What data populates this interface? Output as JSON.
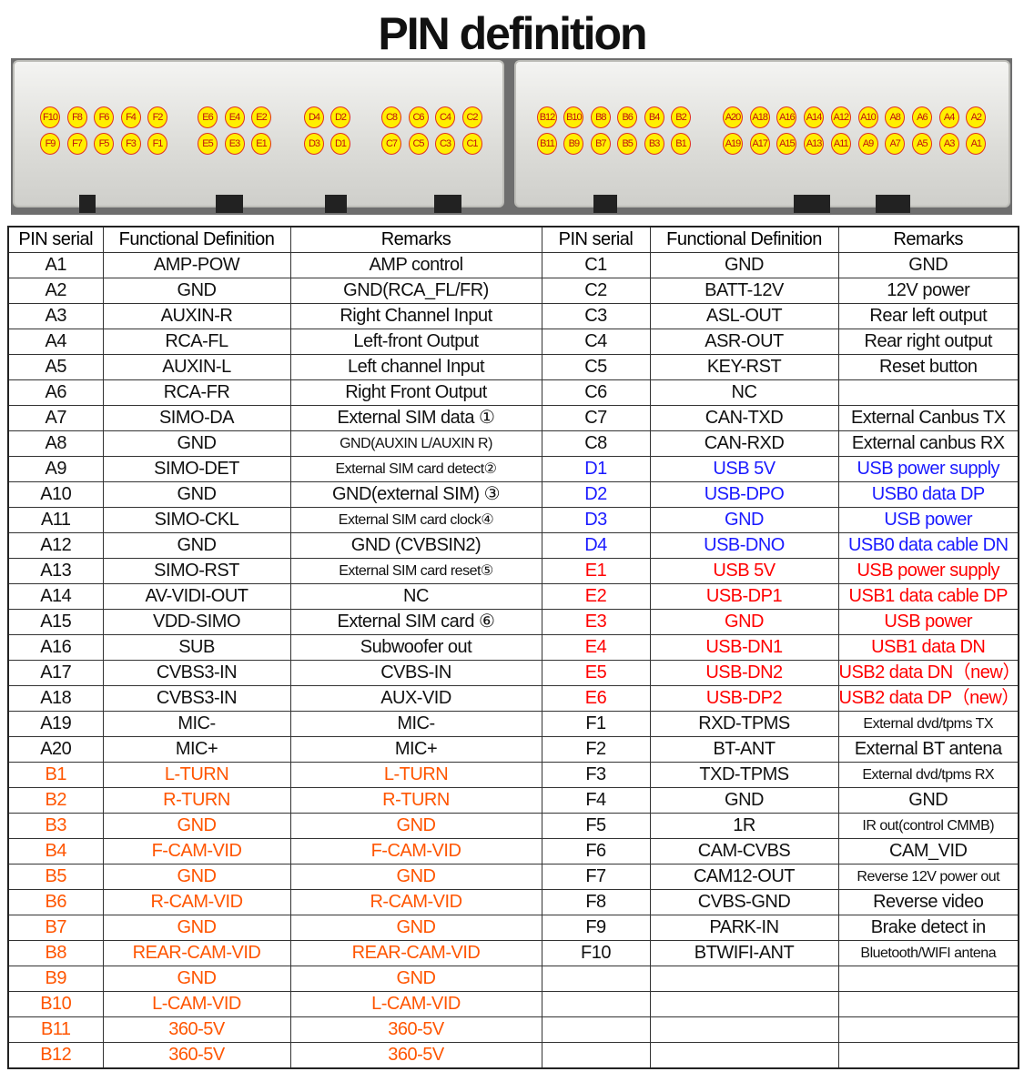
{
  "title": "PIN definition",
  "connector": {
    "groups": [
      {
        "name": "F",
        "top": [
          "F10",
          "F8",
          "F6",
          "F4",
          "F2"
        ],
        "bottom": [
          "F9",
          "F7",
          "F5",
          "F3",
          "F1"
        ]
      },
      {
        "name": "E",
        "top": [
          "E6",
          "E4",
          "E2"
        ],
        "bottom": [
          "E5",
          "E3",
          "E1"
        ]
      },
      {
        "name": "D",
        "top": [
          "D4",
          "D2"
        ],
        "bottom": [
          "D3",
          "D1"
        ]
      },
      {
        "name": "C",
        "top": [
          "C8",
          "C6",
          "C4",
          "C2"
        ],
        "bottom": [
          "C7",
          "C5",
          "C3",
          "C1"
        ]
      },
      {
        "name": "B",
        "top": [
          "B12",
          "B10",
          "B8",
          "B6",
          "B4",
          "B2"
        ],
        "bottom": [
          "B11",
          "B9",
          "B7",
          "B5",
          "B3",
          "B1"
        ]
      },
      {
        "name": "A",
        "top": [
          "A20",
          "A18",
          "A16",
          "A14",
          "A12",
          "A10",
          "A8",
          "A6",
          "A4",
          "A2"
        ],
        "bottom": [
          "A19",
          "A17",
          "A15",
          "A13",
          "A11",
          "A9",
          "A7",
          "A5",
          "A3",
          "A1"
        ]
      }
    ]
  },
  "colors": {
    "default": "#111111",
    "orange": "#ff5500",
    "blue": "#1a1aff",
    "red": "#ff0000"
  },
  "headers": [
    "PIN serial",
    "Functional Definition",
    "Remarks",
    "PIN serial",
    "Functional Definition",
    "Remarks"
  ],
  "left": [
    [
      "A1",
      "AMP-POW",
      "AMP control",
      "default"
    ],
    [
      "A2",
      "GND",
      "GND(RCA_FL/FR)",
      "default"
    ],
    [
      "A3",
      "AUXIN-R",
      "Right Channel Input",
      "default"
    ],
    [
      "A4",
      "RCA-FL",
      "Left-front Output",
      "default"
    ],
    [
      "A5",
      "AUXIN-L",
      "Left channel Input",
      "default"
    ],
    [
      "A6",
      "RCA-FR",
      "Right Front Output",
      "default"
    ],
    [
      "A7",
      "SIMO-DA",
      "External SIM data ①",
      "default"
    ],
    [
      "A8",
      "GND",
      "GND(AUXIN L/AUXIN R)",
      "default"
    ],
    [
      "A9",
      "SIMO-DET",
      "External SIM card detect②",
      "default"
    ],
    [
      "A10",
      "GND",
      "GND(external SIM) ③",
      "default"
    ],
    [
      "A11",
      "SIMO-CKL",
      "External SIM card clock④",
      "default"
    ],
    [
      "A12",
      "GND",
      "GND (CVBSIN2)",
      "default"
    ],
    [
      "A13",
      "SIMO-RST",
      "External SIM card reset⑤",
      "default"
    ],
    [
      "A14",
      "AV-VIDI-OUT",
      "NC",
      "default"
    ],
    [
      "A15",
      "VDD-SIMO",
      "External SIM card ⑥",
      "default"
    ],
    [
      "A16",
      "SUB",
      "Subwoofer out",
      "default"
    ],
    [
      "A17",
      "CVBS3-IN",
      "CVBS-IN",
      "default"
    ],
    [
      "A18",
      "CVBS3-IN",
      "AUX-VID",
      "default"
    ],
    [
      "A19",
      "MIC-",
      "MIC-",
      "default"
    ],
    [
      "A20",
      "MIC+",
      "MIC+",
      "default"
    ],
    [
      "B1",
      "L-TURN",
      "L-TURN",
      "orange"
    ],
    [
      "B2",
      "R-TURN",
      "R-TURN",
      "orange"
    ],
    [
      "B3",
      "GND",
      "GND",
      "orange"
    ],
    [
      "B4",
      "F-CAM-VID",
      "F-CAM-VID",
      "orange"
    ],
    [
      "B5",
      "GND",
      "GND",
      "orange"
    ],
    [
      "B6",
      "R-CAM-VID",
      "R-CAM-VID",
      "orange"
    ],
    [
      "B7",
      "GND",
      "GND",
      "orange"
    ],
    [
      "B8",
      "REAR-CAM-VID",
      "REAR-CAM-VID",
      "orange"
    ],
    [
      "B9",
      "GND",
      "GND",
      "orange"
    ],
    [
      "B10",
      "L-CAM-VID",
      "L-CAM-VID",
      "orange"
    ],
    [
      "B11",
      "360-5V",
      "360-5V",
      "orange"
    ],
    [
      "B12",
      "360-5V",
      "360-5V",
      "orange"
    ]
  ],
  "right": [
    [
      "C1",
      "GND",
      "GND",
      "default"
    ],
    [
      "C2",
      "BATT-12V",
      "12V power",
      "default"
    ],
    [
      "C3",
      "ASL-OUT",
      "Rear left output",
      "default"
    ],
    [
      "C4",
      "ASR-OUT",
      "Rear right output",
      "default"
    ],
    [
      "C5",
      "KEY-RST",
      "Reset button",
      "default"
    ],
    [
      "C6",
      "NC",
      "",
      "default"
    ],
    [
      "C7",
      "CAN-TXD",
      "External Canbus TX",
      "default"
    ],
    [
      "C8",
      "CAN-RXD",
      "External canbus RX",
      "default"
    ],
    [
      "D1",
      "USB 5V",
      "USB power supply",
      "blue"
    ],
    [
      "D2",
      "USB-DPO",
      "USB0 data DP",
      "blue"
    ],
    [
      "D3",
      "GND",
      "USB power",
      "blue"
    ],
    [
      "D4",
      "USB-DNO",
      "USB0 data cable DN",
      "blue"
    ],
    [
      "E1",
      "USB 5V",
      "USB power supply",
      "red"
    ],
    [
      "E2",
      "USB-DP1",
      "USB1 data cable DP",
      "red"
    ],
    [
      "E3",
      "GND",
      "USB power",
      "red"
    ],
    [
      "E4",
      "USB-DN1",
      "USB1 data DN",
      "red"
    ],
    [
      "E5",
      "USB-DN2",
      "USB2 data DN（new）",
      "red"
    ],
    [
      "E6",
      "USB-DP2",
      "USB2 data DP（new）",
      "red"
    ],
    [
      "F1",
      "RXD-TPMS",
      "External dvd/tpms TX",
      "default"
    ],
    [
      "F2",
      "BT-ANT",
      "External BT antena",
      "default"
    ],
    [
      "F3",
      "TXD-TPMS",
      "External dvd/tpms RX",
      "default"
    ],
    [
      "F4",
      "GND",
      "GND",
      "default"
    ],
    [
      "F5",
      "1R",
      "IR out(control CMMB)",
      "default"
    ],
    [
      "F6",
      "CAM-CVBS",
      "CAM_VID",
      "default"
    ],
    [
      "F7",
      "CAM12-OUT",
      "Reverse 12V power out",
      "default"
    ],
    [
      "F8",
      "CVBS-GND",
      "Reverse video",
      "default"
    ],
    [
      "F9",
      "PARK-IN",
      "Brake detect in",
      "default"
    ],
    [
      "F10",
      "BTWIFI-ANT",
      "Bluetooth/WIFI antena",
      "default"
    ],
    [
      "",
      "",
      "",
      "default"
    ],
    [
      "",
      "",
      "",
      "default"
    ],
    [
      "",
      "",
      "",
      "default"
    ],
    [
      "",
      "",
      "",
      "default"
    ]
  ]
}
